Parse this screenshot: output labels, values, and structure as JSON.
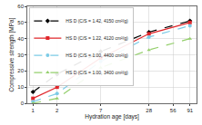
{
  "chart_data": {
    "type": "line",
    "x_label": "Hydration age [days]",
    "y_label": "Compressive strength [MPa]",
    "log": "x",
    "xlim": [
      0.85,
      110
    ],
    "xticks": [
      1,
      2,
      7,
      28,
      56,
      91
    ],
    "ylim": [
      0,
      60
    ],
    "yticks": [
      0,
      10,
      20,
      30,
      40,
      50,
      60
    ],
    "grid": true,
    "legend": "upper left",
    "x": [
      1,
      2,
      7,
      28,
      91
    ],
    "series": [
      {
        "name": "HS D (C/S = 1.42, 4150 cm²/g)",
        "color": "#000000",
        "marker": "diamond",
        "line_style": "dash",
        "values": [
          7,
          18,
          32,
          44,
          51
        ]
      },
      {
        "name": "HS D (C/S = 1.22, 4120 cm²/g)",
        "color": "#e0262b",
        "marker": "square",
        "line_style": "solid",
        "values": [
          3,
          10,
          28,
          43,
          50
        ]
      },
      {
        "name": "HS D (C/S = 1.00, 4400 cm²/g)",
        "color": "#7ccbe6",
        "marker": "circle",
        "line_style": "dash",
        "values": [
          1,
          6,
          26,
          41,
          48
        ]
      },
      {
        "name": "HS D (C/S = 1.00, 3400 cm²/g)",
        "color": "#94cf6c",
        "marker": "triangle-up",
        "line_style": "dash",
        "values": [
          0,
          3,
          22,
          33,
          40
        ]
      }
    ]
  }
}
